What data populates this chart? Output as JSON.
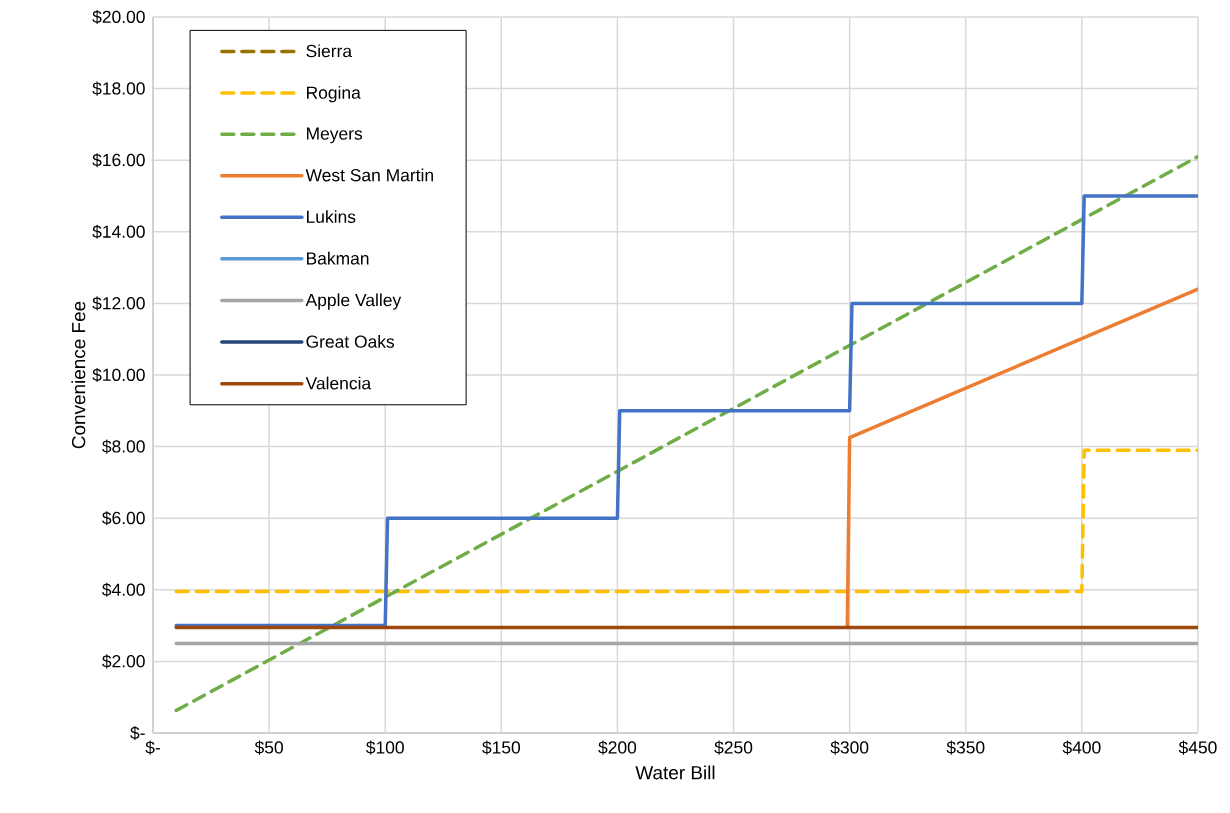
{
  "chart_data": {
    "type": "line",
    "xlabel": "Water Bill",
    "ylabel": "Convenience Fee",
    "xlim": [
      0,
      450
    ],
    "ylim": [
      0,
      20
    ],
    "xticks": [
      {
        "value": 0,
        "label": "$-"
      },
      {
        "value": 50,
        "label": "$50"
      },
      {
        "value": 100,
        "label": "$100"
      },
      {
        "value": 150,
        "label": "$150"
      },
      {
        "value": 200,
        "label": "$200"
      },
      {
        "value": 250,
        "label": "$250"
      },
      {
        "value": 300,
        "label": "$300"
      },
      {
        "value": 350,
        "label": "$350"
      },
      {
        "value": 400,
        "label": "$400"
      },
      {
        "value": 450,
        "label": "$450"
      }
    ],
    "yticks": [
      {
        "value": 0,
        "label": "$-"
      },
      {
        "value": 2,
        "label": "$2.00"
      },
      {
        "value": 4,
        "label": "$4.00"
      },
      {
        "value": 6,
        "label": "$6.00"
      },
      {
        "value": 8,
        "label": "$8.00"
      },
      {
        "value": 10,
        "label": "$10.00"
      },
      {
        "value": 12,
        "label": "$12.00"
      },
      {
        "value": 14,
        "label": "$14.00"
      },
      {
        "value": 16,
        "label": "$16.00"
      },
      {
        "value": 18,
        "label": "$18.00"
      },
      {
        "value": 20,
        "label": "$20.00"
      }
    ],
    "grid": true,
    "legend": "top left",
    "marker": "none",
    "series": [
      {
        "name": "Sierra",
        "color": "#997300",
        "line_style": "dashed"
      },
      {
        "name": "Rogina",
        "color": "#ffc000",
        "line_style": "dashed",
        "x": [
          10,
          400,
          401,
          450
        ],
        "values": [
          3.95,
          3.95,
          7.9,
          7.9
        ]
      },
      {
        "name": "Meyers",
        "color": "#70ad47",
        "line_style": "dashed",
        "x": [
          10,
          450
        ],
        "values": [
          0.63,
          16.1
        ]
      },
      {
        "name": "West San Martin",
        "color": "#ed7d31",
        "line_style": "solid",
        "x": [
          299,
          300,
          450
        ],
        "values": [
          2.95,
          8.25,
          12.4
        ]
      },
      {
        "name": "Lukins",
        "color": "#4472c4",
        "line_style": "solid",
        "x": [
          10,
          100,
          101,
          200,
          201,
          300,
          301,
          400,
          401,
          450
        ],
        "values": [
          3,
          3,
          6,
          6,
          9,
          9,
          12,
          12,
          15,
          15
        ]
      },
      {
        "name": "Bakman",
        "color": "#5b9bd5",
        "line_style": "solid"
      },
      {
        "name": "Apple Valley",
        "color": "#a5a5a5",
        "line_style": "solid",
        "x": [
          10,
          450
        ],
        "values": [
          2.5,
          2.5
        ]
      },
      {
        "name": "Great Oaks",
        "color": "#264478",
        "line_style": "solid"
      },
      {
        "name": "Valencia",
        "color": "#9e480e",
        "line_style": "solid",
        "x": [
          10,
          450
        ],
        "values": [
          2.95,
          2.95
        ]
      }
    ]
  }
}
